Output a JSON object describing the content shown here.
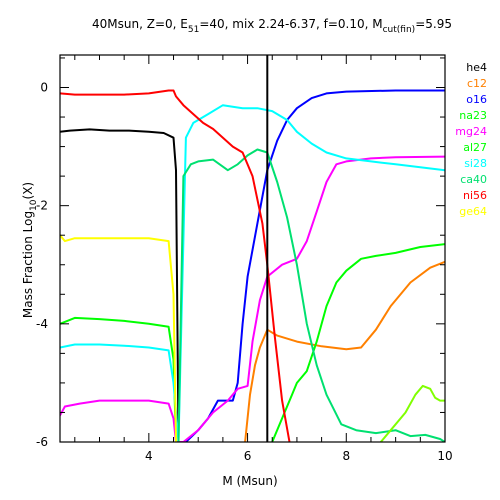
{
  "chart_data": {
    "type": "line",
    "title_parts": {
      "main": "40Msun, Z=0, E",
      "sub1": "51",
      "mid": "=40, mix 2.24-6.37, f=0.10, M",
      "sub2": "cut(fin)",
      "end": "=5.95"
    },
    "xlabel": "M (Msun)",
    "ylabel_parts": {
      "main": "Mass Fraction Log",
      "sub": "10",
      "end": "(X)"
    },
    "xlim": [
      2.2,
      10
    ],
    "ylim": [
      -6,
      0.55
    ],
    "xticks": [
      4,
      6,
      8,
      10
    ],
    "yticks": [
      0,
      -2,
      -4,
      -6
    ],
    "vline_x": 6.4,
    "series": [
      {
        "name": "he4",
        "color": "#000000",
        "points": [
          [
            2.2,
            -0.75
          ],
          [
            2.4,
            -0.73
          ],
          [
            2.8,
            -0.71
          ],
          [
            3.2,
            -0.73
          ],
          [
            3.6,
            -0.73
          ],
          [
            4.0,
            -0.75
          ],
          [
            4.3,
            -0.77
          ],
          [
            4.5,
            -0.85
          ],
          [
            4.55,
            -1.4
          ],
          [
            4.6,
            -6.0
          ]
        ]
      },
      {
        "name": "c12",
        "color": "#ff8000",
        "points": [
          [
            5.95,
            -6.0
          ],
          [
            6.05,
            -5.2
          ],
          [
            6.15,
            -4.7
          ],
          [
            6.25,
            -4.4
          ],
          [
            6.4,
            -4.1
          ],
          [
            6.6,
            -4.2
          ],
          [
            7.0,
            -4.3
          ],
          [
            7.5,
            -4.38
          ],
          [
            8.0,
            -4.43
          ],
          [
            8.3,
            -4.4
          ],
          [
            8.6,
            -4.1
          ],
          [
            8.9,
            -3.7
          ],
          [
            9.3,
            -3.3
          ],
          [
            9.7,
            -3.05
          ],
          [
            10.0,
            -2.95
          ]
        ]
      },
      {
        "name": "o16",
        "color": "#0000ff",
        "points": [
          [
            4.75,
            -6.0
          ],
          [
            5.0,
            -5.8
          ],
          [
            5.2,
            -5.6
          ],
          [
            5.4,
            -5.3
          ],
          [
            5.7,
            -5.3
          ],
          [
            5.8,
            -5.0
          ],
          [
            5.9,
            -4.0
          ],
          [
            6.0,
            -3.2
          ],
          [
            6.2,
            -2.3
          ],
          [
            6.4,
            -1.4
          ],
          [
            6.6,
            -0.9
          ],
          [
            6.8,
            -0.55
          ],
          [
            7.0,
            -0.35
          ],
          [
            7.3,
            -0.18
          ],
          [
            7.6,
            -0.1
          ],
          [
            8.0,
            -0.07
          ],
          [
            9.0,
            -0.05
          ],
          [
            10.0,
            -0.05
          ]
        ]
      },
      {
        "name": "na23",
        "color": "#00ff00",
        "points": [
          [
            2.2,
            -4.0
          ],
          [
            2.5,
            -3.9
          ],
          [
            3.0,
            -3.92
          ],
          [
            3.5,
            -3.95
          ],
          [
            4.0,
            -4.0
          ],
          [
            4.4,
            -4.05
          ],
          [
            4.5,
            -4.6
          ],
          [
            4.55,
            -6.0
          ]
        ]
      },
      {
        "name": "mg24",
        "color": "#ff00ff",
        "points": [
          [
            2.2,
            -5.55
          ],
          [
            2.3,
            -5.4
          ],
          [
            2.6,
            -5.35
          ],
          [
            3.0,
            -5.3
          ],
          [
            3.5,
            -5.3
          ],
          [
            4.0,
            -5.3
          ],
          [
            4.4,
            -5.35
          ],
          [
            4.5,
            -5.6
          ],
          [
            4.55,
            -6.0
          ],
          [
            4.7,
            -6.0
          ],
          [
            5.0,
            -5.8
          ],
          [
            5.3,
            -5.5
          ],
          [
            5.6,
            -5.3
          ],
          [
            5.8,
            -5.1
          ],
          [
            6.0,
            -5.05
          ],
          [
            6.1,
            -4.3
          ],
          [
            6.25,
            -3.6
          ],
          [
            6.4,
            -3.2
          ],
          [
            6.7,
            -3.0
          ],
          [
            7.0,
            -2.9
          ],
          [
            7.2,
            -2.6
          ],
          [
            7.4,
            -2.1
          ],
          [
            7.6,
            -1.6
          ],
          [
            7.8,
            -1.3
          ],
          [
            8.0,
            -1.25
          ],
          [
            8.5,
            -1.2
          ],
          [
            9.0,
            -1.18
          ],
          [
            10.0,
            -1.17
          ]
        ]
      },
      {
        "name": "al27",
        "color": "#00ff00",
        "points": [
          [
            6.5,
            -6.0
          ],
          [
            6.7,
            -5.6
          ],
          [
            6.9,
            -5.2
          ],
          [
            7.0,
            -5.0
          ],
          [
            7.2,
            -4.8
          ],
          [
            7.4,
            -4.3
          ],
          [
            7.6,
            -3.7
          ],
          [
            7.8,
            -3.3
          ],
          [
            8.0,
            -3.1
          ],
          [
            8.3,
            -2.9
          ],
          [
            8.6,
            -2.85
          ],
          [
            9.0,
            -2.8
          ],
          [
            9.5,
            -2.7
          ],
          [
            10.0,
            -2.65
          ]
        ]
      },
      {
        "name": "si28",
        "color": "#00ffff",
        "points": [
          [
            2.2,
            -4.4
          ],
          [
            2.5,
            -4.35
          ],
          [
            3.0,
            -4.35
          ],
          [
            3.5,
            -4.37
          ],
          [
            4.0,
            -4.4
          ],
          [
            4.4,
            -4.45
          ],
          [
            4.5,
            -5.0
          ],
          [
            4.6,
            -6.0
          ],
          [
            4.75,
            -0.85
          ],
          [
            4.9,
            -0.6
          ],
          [
            5.2,
            -0.45
          ],
          [
            5.5,
            -0.3
          ],
          [
            5.9,
            -0.35
          ],
          [
            6.2,
            -0.35
          ],
          [
            6.5,
            -0.4
          ],
          [
            6.8,
            -0.55
          ],
          [
            7.0,
            -0.75
          ],
          [
            7.3,
            -0.95
          ],
          [
            7.6,
            -1.1
          ],
          [
            8.0,
            -1.2
          ],
          [
            8.5,
            -1.25
          ],
          [
            9.0,
            -1.3
          ],
          [
            9.5,
            -1.35
          ],
          [
            10.0,
            -1.4
          ]
        ]
      },
      {
        "name": "ca40",
        "color": "#00e070",
        "points": [
          [
            4.6,
            -6.0
          ],
          [
            4.7,
            -1.5
          ],
          [
            4.85,
            -1.3
          ],
          [
            5.0,
            -1.25
          ],
          [
            5.3,
            -1.22
          ],
          [
            5.6,
            -1.4
          ],
          [
            5.8,
            -1.3
          ],
          [
            6.0,
            -1.15
          ],
          [
            6.2,
            -1.05
          ],
          [
            6.4,
            -1.1
          ],
          [
            6.6,
            -1.6
          ],
          [
            6.8,
            -2.2
          ],
          [
            7.0,
            -3.0
          ],
          [
            7.2,
            -4.0
          ],
          [
            7.4,
            -4.7
          ],
          [
            7.6,
            -5.2
          ],
          [
            7.9,
            -5.7
          ],
          [
            8.2,
            -5.8
          ],
          [
            8.6,
            -5.85
          ],
          [
            9.0,
            -5.8
          ],
          [
            9.3,
            -5.9
          ],
          [
            9.6,
            -5.88
          ],
          [
            9.9,
            -5.95
          ],
          [
            10.0,
            -6.0
          ]
        ]
      },
      {
        "name": "ni56",
        "color": "#ff0000",
        "points": [
          [
            2.2,
            -0.1
          ],
          [
            2.5,
            -0.12
          ],
          [
            3.0,
            -0.12
          ],
          [
            3.5,
            -0.12
          ],
          [
            4.0,
            -0.1
          ],
          [
            4.4,
            -0.05
          ],
          [
            4.5,
            -0.05
          ],
          [
            4.55,
            -0.15
          ],
          [
            4.7,
            -0.3
          ],
          [
            4.9,
            -0.45
          ],
          [
            5.1,
            -0.6
          ],
          [
            5.3,
            -0.7
          ],
          [
            5.5,
            -0.85
          ],
          [
            5.7,
            -1.0
          ],
          [
            5.9,
            -1.1
          ],
          [
            6.1,
            -1.5
          ],
          [
            6.3,
            -2.3
          ],
          [
            6.4,
            -3.0
          ],
          [
            6.55,
            -4.2
          ],
          [
            6.7,
            -5.3
          ],
          [
            6.85,
            -6.0
          ]
        ]
      },
      {
        "name": "ge64",
        "color": "#ffff00",
        "points": [
          [
            2.2,
            -2.5
          ],
          [
            2.3,
            -2.6
          ],
          [
            2.5,
            -2.55
          ],
          [
            3.0,
            -2.55
          ],
          [
            3.5,
            -2.55
          ],
          [
            4.0,
            -2.55
          ],
          [
            4.4,
            -2.6
          ],
          [
            4.5,
            -3.5
          ],
          [
            4.55,
            -6.0
          ]
        ]
      },
      {
        "name": "",
        "color": "#80ff00",
        "points": [
          [
            8.7,
            -6.0
          ],
          [
            8.9,
            -5.8
          ],
          [
            9.2,
            -5.5
          ],
          [
            9.4,
            -5.2
          ],
          [
            9.55,
            -5.05
          ],
          [
            9.7,
            -5.1
          ],
          [
            9.8,
            -5.25
          ],
          [
            9.9,
            -5.3
          ],
          [
            10.0,
            -5.3
          ]
        ]
      }
    ]
  }
}
